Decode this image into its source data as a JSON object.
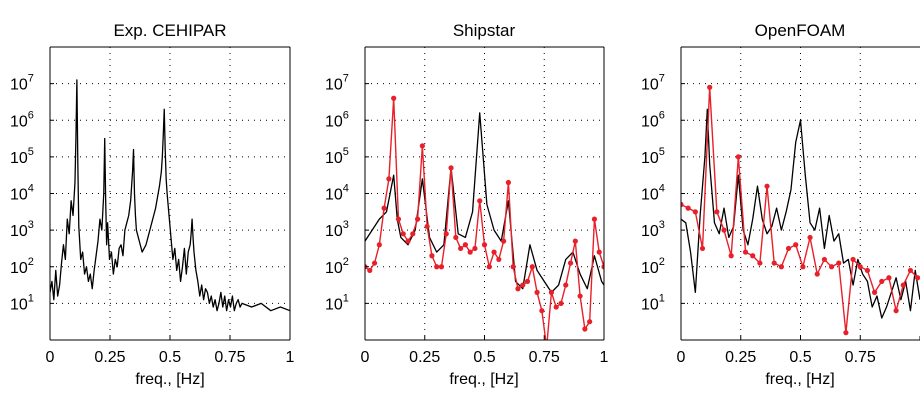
{
  "chart_data": [
    {
      "type": "line",
      "title": "Exp. CEHIPAR",
      "xlabel": "freq., [Hz]",
      "ylabel": "",
      "xlim": [
        0,
        1
      ],
      "ylim_log10": [
        0,
        8
      ],
      "y_scale": "log",
      "grid": "dotted",
      "x_ticks": [
        0,
        0.25,
        0.5,
        0.75,
        1
      ],
      "x_tick_labels": [
        "0",
        "0.25",
        "0.5",
        "0.75",
        "1"
      ],
      "y_ticks_base": "10",
      "y_ticks_exp": [
        "1",
        "2",
        "3",
        "4",
        "5",
        "6",
        "7"
      ],
      "series": [
        {
          "color": "#000000",
          "markers": false,
          "x": [
            0,
            0.008,
            0.016,
            0.024,
            0.032,
            0.04,
            0.048,
            0.056,
            0.064,
            0.072,
            0.08,
            0.088,
            0.096,
            0.104,
            0.108,
            0.112,
            0.116,
            0.12,
            0.128,
            0.136,
            0.144,
            0.152,
            0.16,
            0.168,
            0.176,
            0.184,
            0.192,
            0.2,
            0.208,
            0.216,
            0.224,
            0.228,
            0.232,
            0.236,
            0.24,
            0.248,
            0.256,
            0.264,
            0.272,
            0.28,
            0.288,
            0.296,
            0.304,
            0.312,
            0.32,
            0.328,
            0.336,
            0.344,
            0.348,
            0.352,
            0.356,
            0.36,
            0.368,
            0.376,
            0.384,
            0.392,
            0.4,
            0.408,
            0.416,
            0.424,
            0.432,
            0.44,
            0.448,
            0.456,
            0.464,
            0.468,
            0.472,
            0.476,
            0.48,
            0.484,
            0.488,
            0.496,
            0.504,
            0.512,
            0.52,
            0.528,
            0.536,
            0.544,
            0.552,
            0.56,
            0.568,
            0.576,
            0.584,
            0.588,
            0.592,
            0.596,
            0.6,
            0.608,
            0.616,
            0.624,
            0.632,
            0.64,
            0.648,
            0.656,
            0.664,
            0.672,
            0.68,
            0.688,
            0.696,
            0.704,
            0.712,
            0.72,
            0.728,
            0.736,
            0.744,
            0.752,
            0.76,
            0.768,
            0.776,
            0.784,
            0.792,
            0.8,
            0.84,
            0.88,
            0.92,
            0.96,
            1.0
          ],
          "y": [
            1.3,
            1.6,
            1.1,
            1.9,
            1.2,
            1.5,
            2.1,
            2.6,
            2.2,
            3.3,
            2.9,
            3.8,
            3.4,
            4.3,
            5.5,
            7.1,
            4.8,
            3.1,
            2.2,
            2.4,
            1.8,
            2.0,
            1.6,
            1.8,
            1.4,
            1.9,
            2.3,
            2.7,
            3.3,
            3.0,
            4.0,
            5.5,
            3.8,
            2.6,
            3.2,
            2.2,
            2.4,
            1.8,
            2.2,
            2.0,
            2.5,
            2.6,
            2.3,
            3.0,
            3.2,
            3.4,
            3.8,
            4.6,
            5.2,
            4.0,
            3.4,
            3.0,
            2.8,
            2.6,
            2.4,
            2.5,
            2.6,
            2.8,
            3.0,
            3.2,
            3.4,
            3.6,
            3.9,
            4.2,
            4.6,
            5.0,
            5.6,
            6.3,
            5.2,
            4.4,
            4.0,
            3.4,
            2.8,
            2.2,
            2.5,
            1.9,
            2.2,
            1.6,
            2.0,
            2.5,
            1.8,
            2.4,
            2.6,
            2.9,
            3.3,
            2.8,
            2.4,
            1.9,
            1.6,
            1.2,
            1.5,
            1.1,
            1.4,
            1.3,
            1.0,
            1.2,
            0.9,
            1.1,
            0.8,
            1.0,
            1.3,
            0.9,
            1.2,
            0.8,
            1.1,
            0.9,
            1.2,
            0.8,
            1.0,
            1.1,
            0.9,
            1.0,
            0.9,
            1.0,
            0.8,
            0.9,
            0.8
          ]
        }
      ]
    },
    {
      "type": "line",
      "title": "Shipstar",
      "xlabel": "freq., [Hz]",
      "ylabel": "",
      "xlim": [
        0,
        1
      ],
      "ylim_log10": [
        0,
        8
      ],
      "y_scale": "log",
      "grid": "dotted",
      "x_ticks": [
        0,
        0.25,
        0.5,
        0.75,
        1
      ],
      "x_tick_labels": [
        "0",
        "0.25",
        "0.5",
        "0.75",
        "1"
      ],
      "y_ticks_base": "10",
      "y_ticks_exp": [
        "1",
        "2",
        "3",
        "4",
        "5",
        "6",
        "7"
      ],
      "series": [
        {
          "color": "#000000",
          "markers": false,
          "x": [
            0,
            0.03,
            0.06,
            0.09,
            0.105,
            0.12,
            0.135,
            0.15,
            0.18,
            0.21,
            0.24,
            0.27,
            0.3,
            0.33,
            0.36,
            0.39,
            0.42,
            0.45,
            0.48,
            0.51,
            0.54,
            0.57,
            0.6,
            0.63,
            0.66,
            0.69,
            0.72,
            0.75,
            0.78,
            0.81,
            0.84,
            0.87,
            0.9,
            0.93,
            0.96,
            0.99,
            1.0
          ],
          "y": [
            2.7,
            3.0,
            3.3,
            3.5,
            4.0,
            4.5,
            3.3,
            2.8,
            2.6,
            3.0,
            4.4,
            2.8,
            2.4,
            2.6,
            4.7,
            2.9,
            2.8,
            3.5,
            6.2,
            3.7,
            3.0,
            2.7,
            3.8,
            1.6,
            1.4,
            2.6,
            1.9,
            1.6,
            1.3,
            1.5,
            2.2,
            2.4,
            1.8,
            1.4,
            2.3,
            1.6,
            1.5
          ]
        },
        {
          "color": "#e8202a",
          "markers": true,
          "x": [
            0,
            0.02,
            0.04,
            0.06,
            0.08,
            0.1,
            0.12,
            0.14,
            0.16,
            0.18,
            0.2,
            0.22,
            0.24,
            0.26,
            0.28,
            0.3,
            0.32,
            0.34,
            0.36,
            0.38,
            0.4,
            0.42,
            0.44,
            0.46,
            0.48,
            0.5,
            0.52,
            0.54,
            0.56,
            0.58,
            0.6,
            0.62,
            0.64,
            0.66,
            0.68,
            0.7,
            0.72,
            0.74,
            0.76,
            0.78,
            0.8,
            0.82,
            0.84,
            0.86,
            0.88,
            0.9,
            0.92,
            0.94,
            0.96,
            0.98,
            1.0
          ],
          "y": [
            2.0,
            1.9,
            2.1,
            2.6,
            3.6,
            4.4,
            6.6,
            3.3,
            2.9,
            2.7,
            2.9,
            3.3,
            5.3,
            3.1,
            2.3,
            2.0,
            2.0,
            2.9,
            4.7,
            2.8,
            2.5,
            2.6,
            2.4,
            2.5,
            3.8,
            2.6,
            2.0,
            2.4,
            2.2,
            2.7,
            4.3,
            2.0,
            1.4,
            1.5,
            1.6,
            2.0,
            1.3,
            0.8,
            -0.2,
            1.3,
            0.9,
            1.0,
            1.5,
            2.1,
            2.7,
            1.2,
            0.3,
            0.5,
            3.3,
            2.4,
            2.0
          ]
        }
      ]
    },
    {
      "type": "line",
      "title": "OpenFOAM",
      "xlabel": "freq., [Hz]",
      "ylabel": "",
      "xlim": [
        0,
        1
      ],
      "ylim_log10": [
        0,
        8
      ],
      "y_scale": "log",
      "grid": "dotted",
      "x_ticks": [
        0,
        0.25,
        0.5,
        0.75,
        1
      ],
      "x_tick_labels": [
        "0",
        "0.25",
        "0.5",
        "0.75",
        "1"
      ],
      "y_ticks_base": "10",
      "y_ticks_exp": [
        "1",
        "2",
        "3",
        "4",
        "5",
        "6",
        "7"
      ],
      "series": [
        {
          "color": "#000000",
          "markers": false,
          "x": [
            0,
            0.02,
            0.04,
            0.06,
            0.08,
            0.1,
            0.11,
            0.12,
            0.14,
            0.16,
            0.18,
            0.2,
            0.22,
            0.24,
            0.26,
            0.28,
            0.3,
            0.32,
            0.34,
            0.36,
            0.38,
            0.4,
            0.42,
            0.44,
            0.46,
            0.48,
            0.5,
            0.52,
            0.54,
            0.56,
            0.58,
            0.6,
            0.62,
            0.64,
            0.66,
            0.68,
            0.7,
            0.72,
            0.74,
            0.76,
            0.78,
            0.8,
            0.82,
            0.84,
            0.86,
            0.88,
            0.9,
            0.92,
            0.94,
            0.96,
            0.98,
            1.0
          ],
          "y": [
            3.3,
            3.2,
            2.4,
            1.3,
            3.4,
            5.0,
            6.3,
            4.8,
            3.2,
            2.9,
            3.6,
            2.8,
            3.1,
            4.5,
            3.0,
            2.6,
            3.3,
            4.2,
            3.3,
            2.9,
            3.1,
            3.6,
            3.0,
            3.5,
            4.1,
            5.4,
            6.0,
            4.5,
            3.2,
            3.0,
            3.6,
            2.5,
            3.4,
            2.7,
            2.9,
            2.1,
            2.2,
            1.5,
            2.2,
            1.8,
            1.6,
            0.9,
            1.2,
            0.6,
            0.9,
            1.3,
            1.7,
            1.1,
            1.6,
            0.8,
            1.9,
            1.1
          ]
        },
        {
          "color": "#e8202a",
          "markers": true,
          "x": [
            0,
            0.03,
            0.06,
            0.09,
            0.12,
            0.15,
            0.18,
            0.21,
            0.24,
            0.27,
            0.3,
            0.33,
            0.36,
            0.39,
            0.42,
            0.45,
            0.48,
            0.51,
            0.54,
            0.57,
            0.6,
            0.63,
            0.66,
            0.69,
            0.72,
            0.75,
            0.78,
            0.81,
            0.84,
            0.87,
            0.9,
            0.93,
            0.96,
            0.99
          ],
          "y": [
            3.7,
            3.6,
            3.5,
            2.5,
            6.9,
            3.5,
            3.0,
            2.3,
            5.0,
            2.4,
            2.3,
            2.1,
            4.2,
            2.1,
            2.0,
            2.5,
            2.6,
            2.0,
            2.8,
            1.8,
            2.2,
            2.0,
            2.1,
            0.2,
            2.2,
            2.0,
            1.9,
            1.3,
            1.6,
            1.7,
            0.8,
            1.5,
            1.9,
            1.7
          ]
        }
      ]
    }
  ]
}
